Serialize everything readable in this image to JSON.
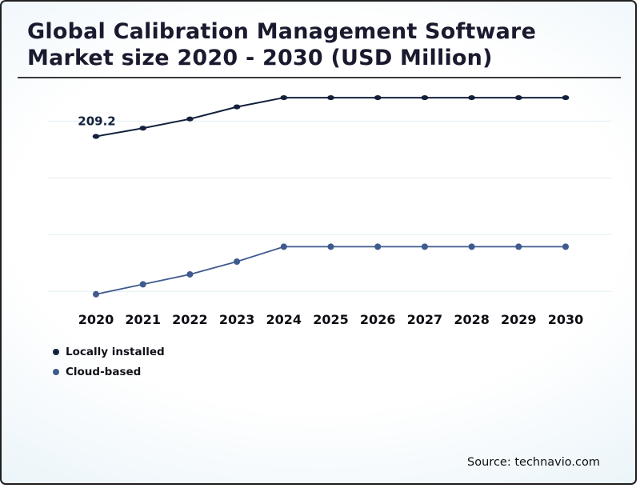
{
  "title": "Global Calibration Management Software Market size 2020 - 2030 (USD Million)",
  "source": "Source: technavio.com",
  "colors": {
    "title": "#1a1a2f",
    "border": "#1f1f1f",
    "background_edge": "#d7ebf4",
    "locally_installed": "#14213d",
    "cloud_based": "#3f5a8e"
  },
  "chart_data": {
    "type": "line",
    "title": "Global Calibration Management Software Market size 2020 - 2030 (USD Million)",
    "xlabel": "",
    "ylabel": "",
    "x": [
      2020,
      2021,
      2022,
      2023,
      2024,
      2025,
      2026,
      2027,
      2028,
      2029,
      2030
    ],
    "series": [
      {
        "name": "Locally installed",
        "color": "#14213d",
        "marker": "ellipse",
        "values": [
          209.2,
          215.0,
          221.5,
          230.0,
          236.5,
          236.5,
          236.5,
          236.5,
          236.5,
          236.5,
          236.5
        ]
      },
      {
        "name": "Cloud-based",
        "color": "#3f5a8e",
        "marker": "circle",
        "values": [
          98.0,
          105.0,
          112.0,
          121.0,
          131.5,
          131.5,
          131.5,
          131.5,
          131.5,
          131.5,
          131.5
        ]
      }
    ],
    "annotations": [
      {
        "series": "Locally installed",
        "x": 2020,
        "label": "209.2"
      }
    ],
    "ylim": [
      90,
      245
    ],
    "gridline_values": [
      100,
      140,
      180,
      220
    ],
    "grid": "faint-horizontal",
    "legend_position": "bottom-left"
  }
}
